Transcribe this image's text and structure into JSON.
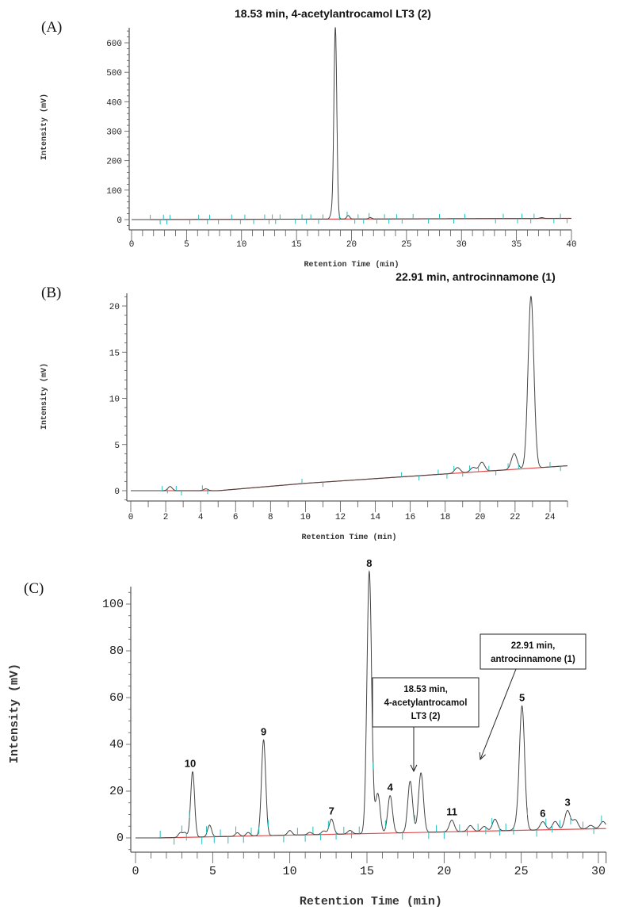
{
  "chart_data": [
    {
      "type": "line",
      "panel": "(A)",
      "title": "18.53 min, 4-acetylantrocamol LT3 (2)",
      "xlabel": "Retention Time (min)",
      "ylabel": "Intensity (mV)",
      "xlim": [
        0,
        40
      ],
      "ylim": [
        -30,
        680
      ],
      "xticks": [
        0,
        5,
        10,
        15,
        20,
        25,
        30,
        35,
        40
      ],
      "yticks": [
        0,
        100,
        200,
        300,
        400,
        500,
        600
      ],
      "baseline": [
        [
          1.7,
          0
        ],
        [
          40,
          4
        ]
      ],
      "peaks": [
        {
          "rt": 18.53,
          "height": 650
        },
        {
          "rt": 18.2,
          "height": 20
        },
        {
          "rt": 19.7,
          "height": 12
        },
        {
          "rt": 21.7,
          "height": 5
        },
        {
          "rt": 37.3,
          "height": 3
        }
      ],
      "integration_marks": [
        1.7,
        2.6,
        2.9,
        3.2,
        3.5,
        5.3,
        6.1,
        6.9,
        7.1,
        7.9,
        9.1,
        9.9,
        10.3,
        11.1,
        12.1,
        12.5,
        12.8,
        13.1,
        13.5,
        14.9,
        15.5,
        15.9,
        16.3,
        17.0,
        17.4,
        18.9,
        19.6,
        20.3,
        20.6,
        21.1,
        21.6,
        22.3,
        23.0,
        23.4,
        24.1,
        24.6,
        25.6,
        27.0,
        28.0,
        29.3,
        30.3,
        33.1,
        33.8,
        35.1,
        35.5,
        36.3,
        36.6,
        38.4,
        39.0,
        39.6
      ],
      "colors": {
        "trace": "#444444",
        "baseline": "#e05050",
        "marks": "#20c0c0"
      }
    },
    {
      "type": "line",
      "panel": "(B)",
      "title": "22.91 min, antrocinnamone (1)",
      "xlabel": "Retention Time (min)",
      "ylabel": "Intensity (mV)",
      "xlim": [
        0,
        25
      ],
      "ylim": [
        -1.2,
        22
      ],
      "xticks": [
        0,
        2,
        4,
        6,
        8,
        10,
        12,
        14,
        16,
        18,
        20,
        22,
        24
      ],
      "yticks": [
        0,
        5,
        10,
        15,
        20
      ],
      "baseline": [
        [
          1.8,
          0
        ],
        [
          5,
          0
        ],
        [
          10,
          0.8
        ],
        [
          25,
          2.7
        ]
      ],
      "peaks": [
        {
          "rt": 22.91,
          "height": 18.6
        },
        {
          "rt": 21.95,
          "height": 1.7
        },
        {
          "rt": 20.1,
          "height": 1.0
        },
        {
          "rt": 19.6,
          "height": 0.5
        },
        {
          "rt": 18.7,
          "height": 0.6
        },
        {
          "rt": 2.25,
          "height": 0.45
        },
        {
          "rt": 4.3,
          "height": 0.2
        }
      ],
      "integration_marks": [
        1.8,
        2.1,
        2.6,
        2.9,
        4.1,
        4.4,
        9.8,
        11.0,
        15.5,
        16.5,
        17.6,
        18.1,
        18.5,
        19.0,
        19.4,
        19.9,
        20.5,
        20.9,
        21.6,
        22.2,
        24.0,
        24.6
      ],
      "colors": {
        "trace": "#444444",
        "baseline": "#e05050",
        "marks": "#20c0c0"
      }
    },
    {
      "type": "line",
      "panel": "(C)",
      "xlabel": "Retention Time (min)",
      "ylabel": "Intensity (mV)",
      "xlim": [
        0,
        30.5
      ],
      "ylim": [
        -6,
        118
      ],
      "xticks": [
        0,
        5,
        10,
        15,
        20,
        25,
        30
      ],
      "yticks": [
        0,
        20,
        40,
        60,
        80,
        100
      ],
      "baseline": [
        [
          1.5,
          0
        ],
        [
          30.5,
          4
        ]
      ],
      "peaks": [
        {
          "rt": 3.7,
          "height": 28,
          "label": "10"
        },
        {
          "rt": 4.8,
          "height": 5
        },
        {
          "rt": 2.9,
          "height": 2
        },
        {
          "rt": 3.2,
          "height": 2
        },
        {
          "rt": 6.6,
          "height": 1.5
        },
        {
          "rt": 7.3,
          "height": 1.5
        },
        {
          "rt": 8.3,
          "height": 41,
          "label": "9"
        },
        {
          "rt": 10.0,
          "height": 2
        },
        {
          "rt": 11.3,
          "height": 1
        },
        {
          "rt": 12.2,
          "height": 1.5
        },
        {
          "rt": 12.7,
          "height": 6.5,
          "label": "7"
        },
        {
          "rt": 13.9,
          "height": 1.5
        },
        {
          "rt": 15.15,
          "height": 112,
          "label": "8"
        },
        {
          "rt": 15.7,
          "height": 17
        },
        {
          "rt": 16.5,
          "height": 16,
          "label": "4"
        },
        {
          "rt": 17.8,
          "height": 22
        },
        {
          "rt": 18.5,
          "height": 25.5
        },
        {
          "rt": 20.5,
          "height": 5,
          "label": "11"
        },
        {
          "rt": 21.7,
          "height": 2.5
        },
        {
          "rt": 22.6,
          "height": 2
        },
        {
          "rt": 23.3,
          "height": 5
        },
        {
          "rt": 24.7,
          "height": 2
        },
        {
          "rt": 25.05,
          "height": 53,
          "label": "5"
        },
        {
          "rt": 26.4,
          "height": 3.5,
          "label": "6"
        },
        {
          "rt": 27.2,
          "height": 3.5
        },
        {
          "rt": 28.0,
          "height": 8,
          "label": "3"
        },
        {
          "rt": 28.5,
          "height": 4
        },
        {
          "rt": 29.5,
          "height": 1.5
        },
        {
          "rt": 30.3,
          "height": 3
        }
      ],
      "integration_marks": [
        1.6,
        2.5,
        3.0,
        3.3,
        3.5,
        4.3,
        4.6,
        5.1,
        5.5,
        6.0,
        6.5,
        7.0,
        7.5,
        8.0,
        8.6,
        9.6,
        10.5,
        11.0,
        11.5,
        12.0,
        12.5,
        13.0,
        13.5,
        14.0,
        14.5,
        15.4,
        16.2,
        17.3,
        18.1,
        19.0,
        19.5,
        20.0,
        21.0,
        21.5,
        22.2,
        22.7,
        23.1,
        23.6,
        24.0,
        24.5,
        25.4,
        26.0,
        26.6,
        27.0,
        27.5,
        28.2,
        29.0,
        29.7,
        30.2
      ],
      "annotations": [
        {
          "lines": [
            "18.53 min,",
            "4-acetylantrocamol",
            "LT3 (2)"
          ],
          "target_rt": 18.53
        },
        {
          "lines": [
            "22.91 min,",
            "antrocinnamone (1)"
          ],
          "target_rt": 22.91
        }
      ],
      "colors": {
        "trace": "#444444",
        "baseline": "#e05050",
        "marks": "#20c0c0"
      }
    }
  ]
}
